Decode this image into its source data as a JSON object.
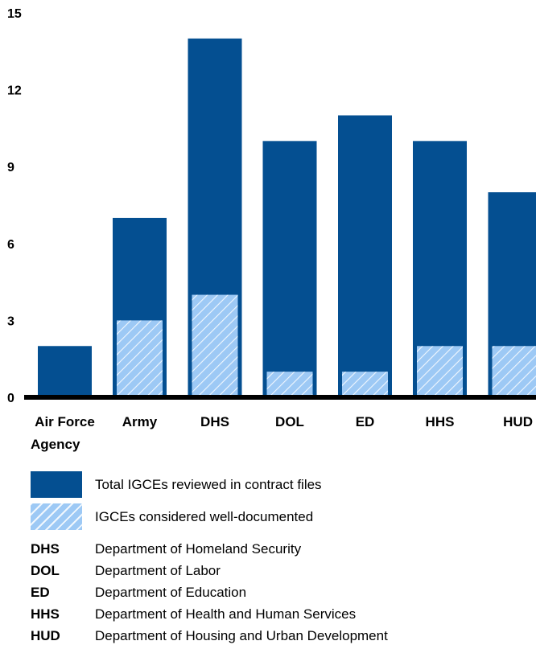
{
  "chart_data": {
    "type": "bar",
    "categories": [
      "Air Force",
      "Army",
      "DHS",
      "DOL",
      "ED",
      "HHS",
      "HUD"
    ],
    "series": [
      {
        "name": "Total IGCEs reviewed in contract files",
        "values": [
          2,
          7,
          14,
          10,
          11,
          10,
          8
        ],
        "color": "#044f91"
      },
      {
        "name": "IGCEs considered well-documented",
        "values": [
          0,
          3,
          4,
          1,
          1,
          2,
          2
        ],
        "color": "#9dc9f5"
      }
    ],
    "yticks": [
      "0",
      "3",
      "6",
      "9",
      "12",
      "15"
    ],
    "ylim": [
      0,
      15
    ],
    "xlabel": "Agency",
    "ylabel": "",
    "title": "",
    "grid": false,
    "legend_position": "bottom"
  },
  "legend": [
    {
      "label": "Total IGCEs reviewed in contract files",
      "style": "solid"
    },
    {
      "label": "IGCEs considered well-documented",
      "style": "hatch"
    }
  ],
  "abbreviations": [
    {
      "abbr": "DHS",
      "full": "Department of Homeland Security"
    },
    {
      "abbr": "DOL",
      "full": "Department of Labor"
    },
    {
      "abbr": "ED",
      "full": "Department of Education"
    },
    {
      "abbr": "HHS",
      "full": "Department of Health and Human Services"
    },
    {
      "abbr": "HUD",
      "full": "Department of Housing and Urban Development"
    }
  ]
}
